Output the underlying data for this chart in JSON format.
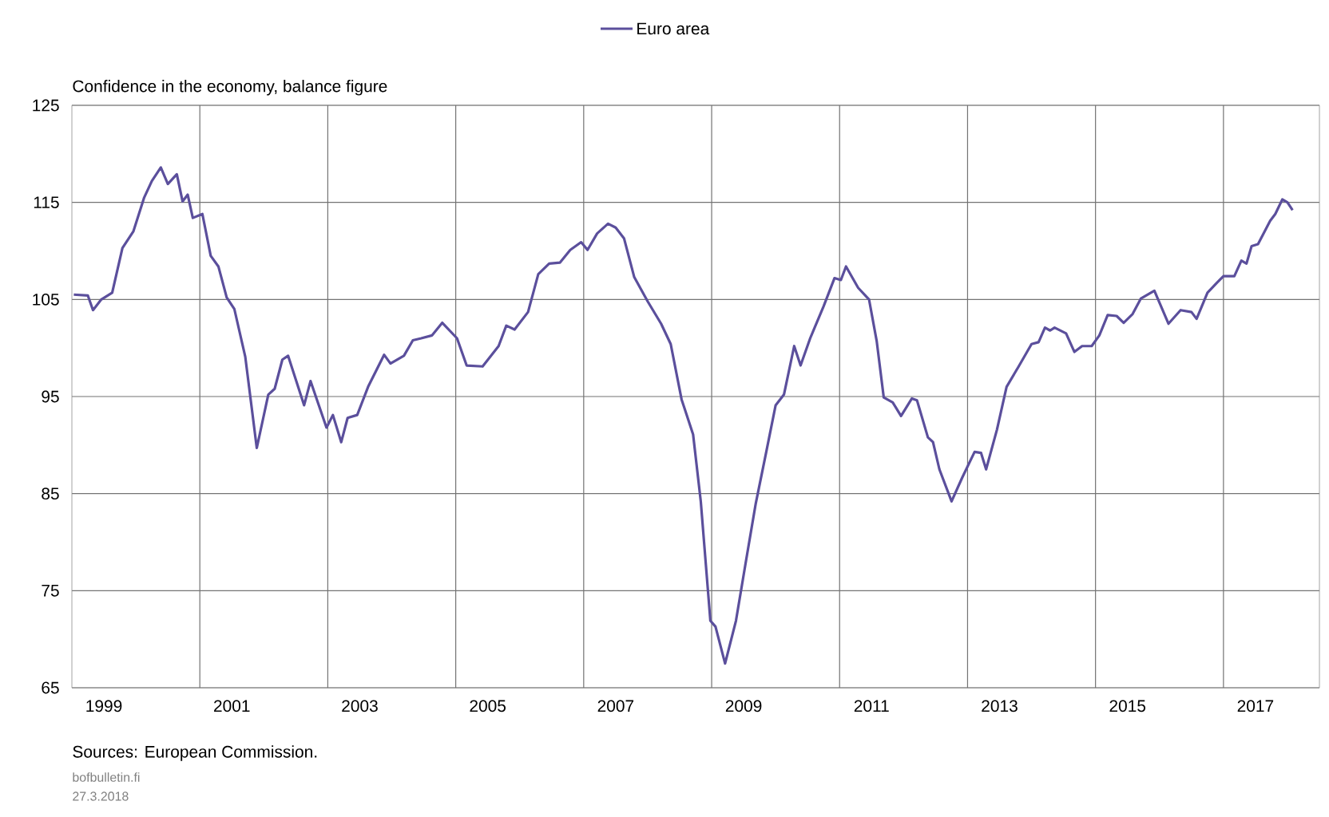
{
  "chart_data": {
    "type": "line",
    "ylabel": "Confidence in the economy, balance figure",
    "annotations": [
      "Sources: European Commission.",
      "bofbulletin.fi",
      "27.3.2018"
    ],
    "legend": "top",
    "grid": true,
    "marker": "none",
    "line_style": "solid",
    "xlim": [
      1999,
      2018.5
    ],
    "ylim": [
      65,
      125
    ],
    "yticks": [
      65,
      75,
      85,
      95,
      105,
      115,
      125
    ],
    "xticks": [
      {
        "value": 1999.5,
        "label": "1999"
      },
      {
        "value": 2001.5,
        "label": "2001"
      },
      {
        "value": 2003.5,
        "label": "2003"
      },
      {
        "value": 2005.5,
        "label": "2005"
      },
      {
        "value": 2007.5,
        "label": "2007"
      },
      {
        "value": 2009.5,
        "label": "2009"
      },
      {
        "value": 2011.5,
        "label": "2011"
      },
      {
        "value": 2013.5,
        "label": "2013"
      },
      {
        "value": 2015.5,
        "label": "2015"
      },
      {
        "value": 2017.5,
        "label": "2017"
      },
      {
        "value": 2001,
        "label": null
      },
      {
        "value": 2003,
        "label": null
      },
      {
        "value": 2005,
        "label": null
      },
      {
        "value": 2007,
        "label": null
      },
      {
        "value": 2009,
        "label": null
      },
      {
        "value": 2011,
        "label": null
      },
      {
        "value": 2013,
        "label": null
      },
      {
        "value": 2015,
        "label": null
      },
      {
        "value": 2017,
        "label": null
      }
    ],
    "series": [
      {
        "name": "Euro area",
        "color": "#5b4f9c",
        "x": [
          1999.03,
          1999.25,
          1999.33,
          1999.46,
          1999.63,
          1999.79,
          1999.96,
          2000.13,
          2000.25,
          2000.39,
          2000.5,
          2000.64,
          2000.73,
          2000.81,
          2000.89,
          2001.04,
          2001.17,
          2001.29,
          2001.42,
          2001.54,
          2001.71,
          2001.89,
          2002.07,
          2002.17,
          2002.29,
          2002.38,
          2002.63,
          2002.73,
          2002.86,
          2002.98,
          2003.08,
          2003.21,
          2003.31,
          2003.46,
          2003.63,
          2003.88,
          2003.98,
          2004.19,
          2004.33,
          2004.46,
          2004.63,
          2004.79,
          2005.02,
          2005.17,
          2005.42,
          2005.67,
          2005.79,
          2005.92,
          2006.13,
          2006.29,
          2006.46,
          2006.63,
          2006.79,
          2006.96,
          2007.06,
          2007.21,
          2007.38,
          2007.5,
          2007.63,
          2007.79,
          2008.0,
          2008.21,
          2008.36,
          2008.53,
          2008.71,
          2008.83,
          2008.98,
          2009.06,
          2009.21,
          2009.38,
          2009.54,
          2009.69,
          2009.86,
          2010.0,
          2010.13,
          2010.29,
          2010.39,
          2010.54,
          2010.75,
          2010.92,
          2011.02,
          2011.1,
          2011.29,
          2011.46,
          2011.58,
          2011.69,
          2011.83,
          2011.96,
          2012.13,
          2012.21,
          2012.38,
          2012.46,
          2012.56,
          2012.75,
          2012.92,
          2013.11,
          2013.21,
          2013.29,
          2013.46,
          2013.61,
          2013.79,
          2014.0,
          2014.11,
          2014.21,
          2014.29,
          2014.36,
          2014.54,
          2014.67,
          2014.79,
          2014.94,
          2015.06,
          2015.19,
          2015.33,
          2015.44,
          2015.58,
          2015.71,
          2015.92,
          2016.14,
          2016.33,
          2016.5,
          2016.58,
          2016.75,
          2016.88,
          2017.0,
          2017.17,
          2017.28,
          2017.36,
          2017.44,
          2017.54,
          2017.73,
          2017.81,
          2017.92,
          2018.0,
          2018.08
        ],
        "values": [
          105.5,
          105.4,
          103.9,
          105.0,
          105.7,
          110.3,
          112.0,
          115.5,
          117.2,
          118.6,
          116.9,
          117.9,
          115.1,
          115.8,
          113.4,
          113.8,
          109.5,
          108.4,
          105.2,
          104.0,
          99.1,
          89.7,
          95.2,
          95.8,
          98.8,
          99.2,
          94.1,
          96.6,
          94.1,
          91.8,
          93.1,
          90.3,
          92.8,
          93.1,
          96.0,
          99.3,
          98.4,
          99.2,
          100.8,
          101.0,
          101.3,
          102.6,
          101.0,
          98.2,
          98.1,
          100.2,
          102.3,
          101.9,
          103.7,
          107.6,
          108.7,
          108.8,
          110.1,
          110.9,
          110.1,
          111.8,
          112.8,
          112.4,
          111.3,
          107.3,
          104.8,
          102.5,
          100.4,
          94.7,
          91.1,
          84.2,
          71.9,
          71.3,
          67.5,
          71.9,
          78.2,
          84.0,
          89.5,
          94.1,
          95.2,
          100.2,
          98.2,
          101.0,
          104.3,
          107.2,
          107.0,
          108.4,
          106.2,
          105.0,
          100.7,
          94.9,
          94.4,
          93.0,
          94.8,
          94.6,
          90.8,
          90.3,
          87.5,
          84.2,
          86.7,
          89.3,
          89.2,
          87.5,
          91.6,
          96.0,
          98.0,
          100.4,
          100.6,
          102.1,
          101.8,
          102.1,
          101.5,
          99.6,
          100.2,
          100.2,
          101.3,
          103.4,
          103.3,
          102.6,
          103.5,
          105.1,
          105.9,
          102.5,
          103.9,
          103.7,
          103.0,
          105.7,
          106.6,
          107.4,
          107.4,
          109.0,
          108.7,
          110.5,
          110.7,
          113.1,
          113.8,
          115.3,
          115.0,
          114.2
        ]
      }
    ]
  }
}
